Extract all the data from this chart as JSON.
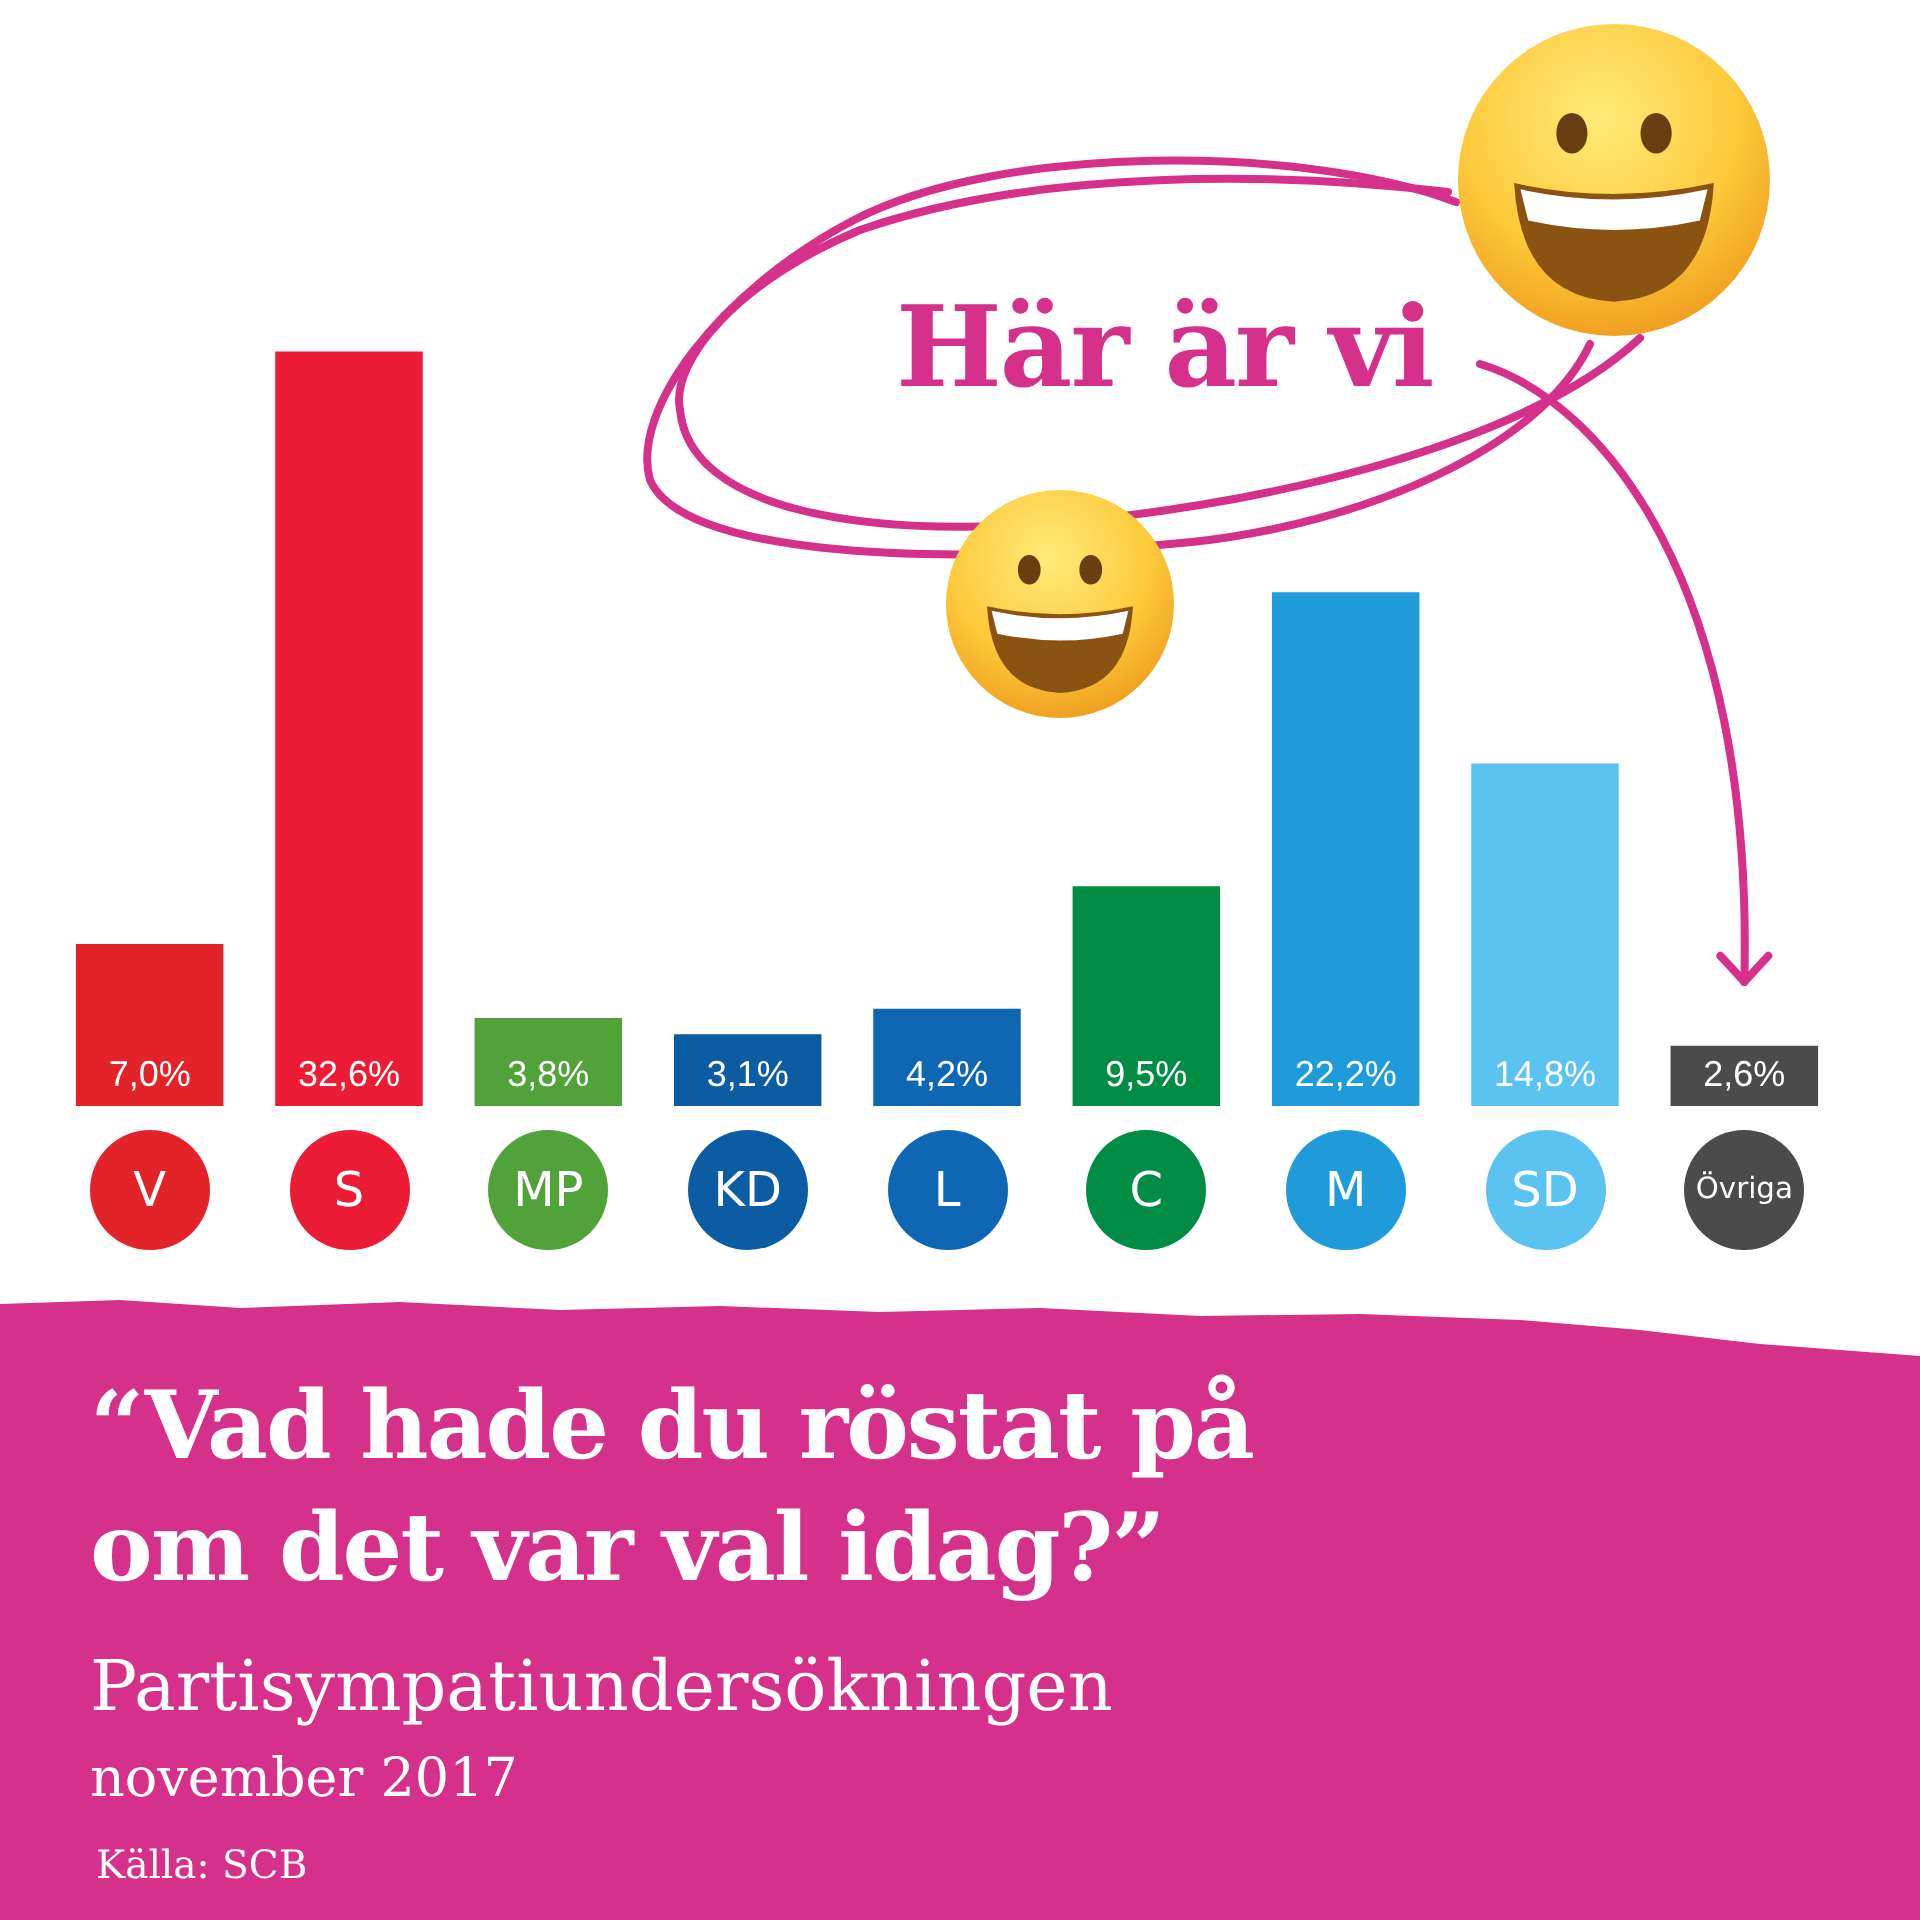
{
  "chart_data": {
    "type": "bar",
    "title": "“Vad hade du röstat på om det var val idag?”",
    "subtitle": "Partisympatiundersökningen",
    "categories": [
      "V",
      "S",
      "MP",
      "KD",
      "L",
      "C",
      "M",
      "SD",
      "Övriga"
    ],
    "values": [
      7.0,
      32.6,
      3.8,
      3.1,
      4.2,
      9.5,
      22.2,
      14.8,
      2.6
    ],
    "colors": [
      "#e3232a",
      "#ec1b36",
      "#52a23a",
      "#0b5ca3",
      "#0f67b3",
      "#008c43",
      "#1e9bd8",
      "#5bc3f1",
      "#4b4b4b"
    ],
    "value_labels": [
      "7,0%",
      "32,6%",
      "3,8%",
      "3,1%",
      "4,2%",
      "9,5%",
      "22,2%",
      "14,8%",
      "2,6%"
    ],
    "tick_labels": "x",
    "annotations": [
      "Här är vi",
      "november 2017",
      "Källa: SCB"
    ]
  }
}
